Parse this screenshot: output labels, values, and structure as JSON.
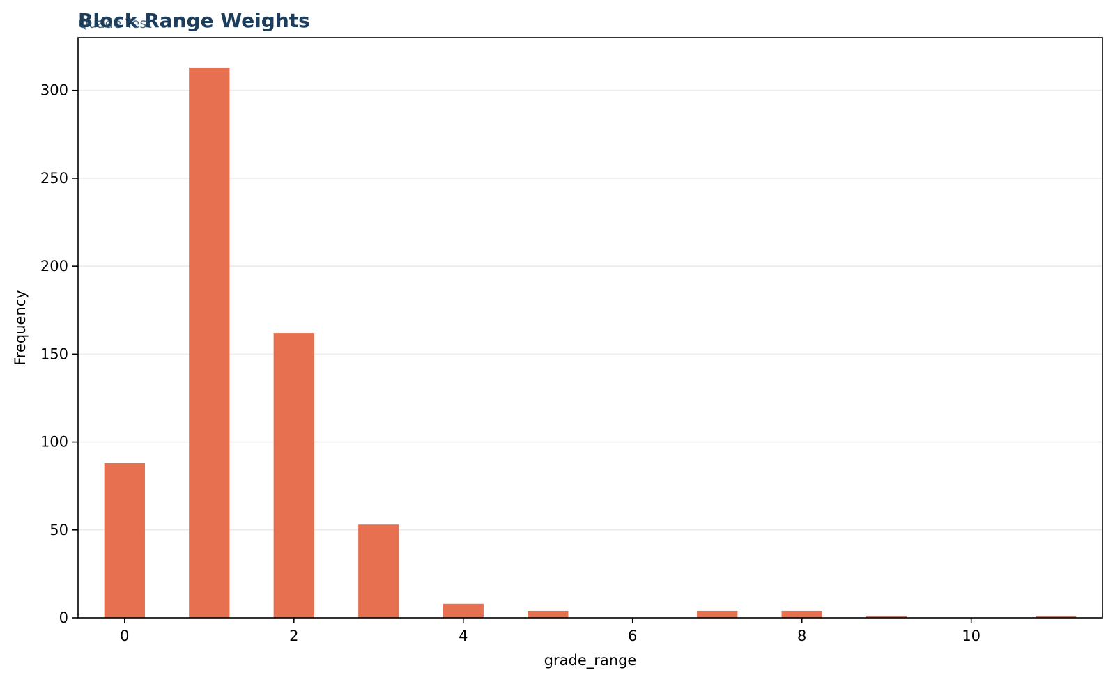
{
  "chart_data": {
    "type": "bar",
    "title": "Block Range Weights",
    "subtitle": "Quade Test",
    "xlabel": "grade_range",
    "ylabel": "Frequency",
    "x": [
      0,
      1,
      2,
      3,
      4,
      5,
      6,
      7,
      8,
      9,
      10,
      11
    ],
    "values": [
      88,
      313,
      162,
      53,
      8,
      4,
      0,
      4,
      4,
      1,
      0,
      1
    ],
    "bin_width": 0.48,
    "xlim": [
      -0.55,
      11.55
    ],
    "ylim": [
      0,
      330
    ],
    "x_ticks": [
      0,
      2,
      4,
      6,
      8,
      10
    ],
    "y_ticks": [
      0,
      50,
      100,
      150,
      200,
      250,
      300
    ],
    "grid": "horizontal",
    "legend": "none",
    "colors": {
      "bar": "#e67050",
      "title": "#1d3d5c",
      "subtitle": "#4a6a86",
      "grid": "#ebebeb",
      "axis": "#000000"
    }
  }
}
